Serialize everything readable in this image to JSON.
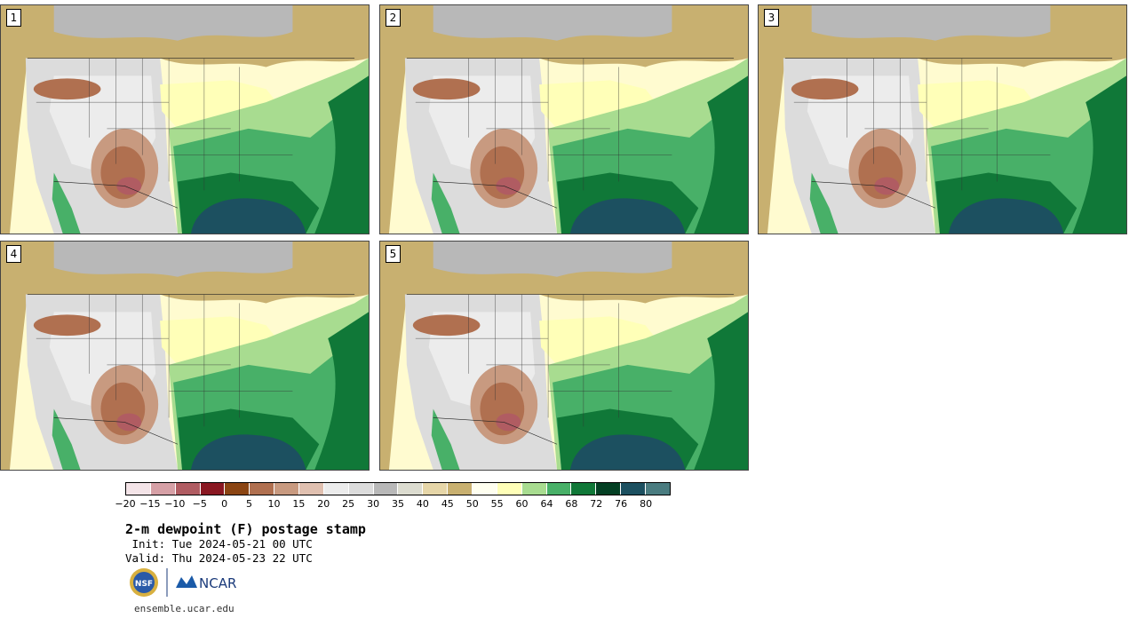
{
  "panels": [
    {
      "label": "1"
    },
    {
      "label": "2"
    },
    {
      "label": "3"
    },
    {
      "label": "4"
    },
    {
      "label": "5"
    }
  ],
  "colorbar": {
    "colors": [
      "#f4e4e8",
      "#d6a0a6",
      "#b05c62",
      "#8a1822",
      "#8b4513",
      "#b07050",
      "#c89a80",
      "#e0c0b0",
      "#ececec",
      "#dcdcdc",
      "#b8b8b8",
      "#dcdcd0",
      "#e6d6a8",
      "#c8b070",
      "#fffff0",
      "#ffffb8",
      "#a8dc90",
      "#48b068",
      "#107838",
      "#044024",
      "#1c5060",
      "#4a7c80"
    ],
    "ticks": [
      "−20",
      "−15",
      "−10",
      "−5",
      "0",
      "5",
      "10",
      "15",
      "20",
      "25",
      "30",
      "35",
      "40",
      "45",
      "50",
      "55",
      "60",
      "64",
      "68",
      "72",
      "76",
      "80"
    ]
  },
  "title": "2-m dewpoint (F) postage stamp",
  "init": " Init: Tue 2024-05-21 00 UTC",
  "valid": "Valid: Thu 2024-05-23 22 UTC",
  "logos": {
    "nsf": "NSF",
    "ncar": "NCAR"
  },
  "url": "ensemble.ucar.edu",
  "colors": {
    "ocean_gulf": "#1c5060",
    "ocean_atlantic": "#48b068",
    "pacific": "#ffffc0",
    "canada": "#c8b070"
  }
}
